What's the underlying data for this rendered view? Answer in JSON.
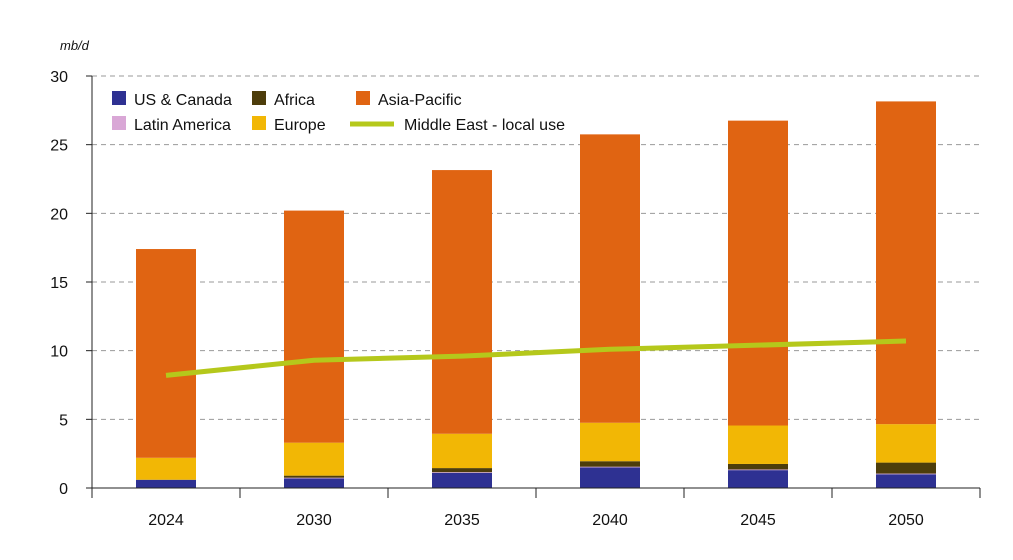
{
  "chart_data": {
    "type": "bar",
    "stacked": true,
    "title": "",
    "ylabel": "mb/d",
    "xlabel": "",
    "ylim": [
      0,
      30
    ],
    "yticks": [
      0,
      5,
      10,
      15,
      20,
      25,
      30
    ],
    "categories": [
      "2024",
      "2030",
      "2035",
      "2040",
      "2045",
      "2050"
    ],
    "grid": "dashed horizontal",
    "legend": "top-left",
    "series": [
      {
        "name": "US & Canada",
        "type": "bar",
        "color": "#2e3192",
        "values": [
          0.6,
          0.7,
          1.1,
          1.5,
          1.3,
          1.0
        ]
      },
      {
        "name": "Latin America",
        "type": "bar",
        "color": "#d9a7d6",
        "values": [
          0.0,
          0.05,
          0.05,
          0.05,
          0.05,
          0.05
        ]
      },
      {
        "name": "Africa",
        "type": "bar",
        "color": "#4d3d0b",
        "values": [
          0.0,
          0.15,
          0.3,
          0.4,
          0.4,
          0.8
        ]
      },
      {
        "name": "Europe",
        "type": "bar",
        "color": "#f2b705",
        "values": [
          1.6,
          2.4,
          2.5,
          2.8,
          2.8,
          2.8
        ]
      },
      {
        "name": "Asia-Pacific",
        "type": "bar",
        "color": "#e06412",
        "values": [
          15.2,
          16.9,
          19.2,
          21.0,
          22.2,
          23.5
        ]
      },
      {
        "name": "Middle East - local use",
        "type": "line",
        "color": "#b5c81b",
        "values": [
          8.2,
          9.3,
          9.6,
          10.1,
          10.4,
          10.7
        ]
      }
    ]
  }
}
